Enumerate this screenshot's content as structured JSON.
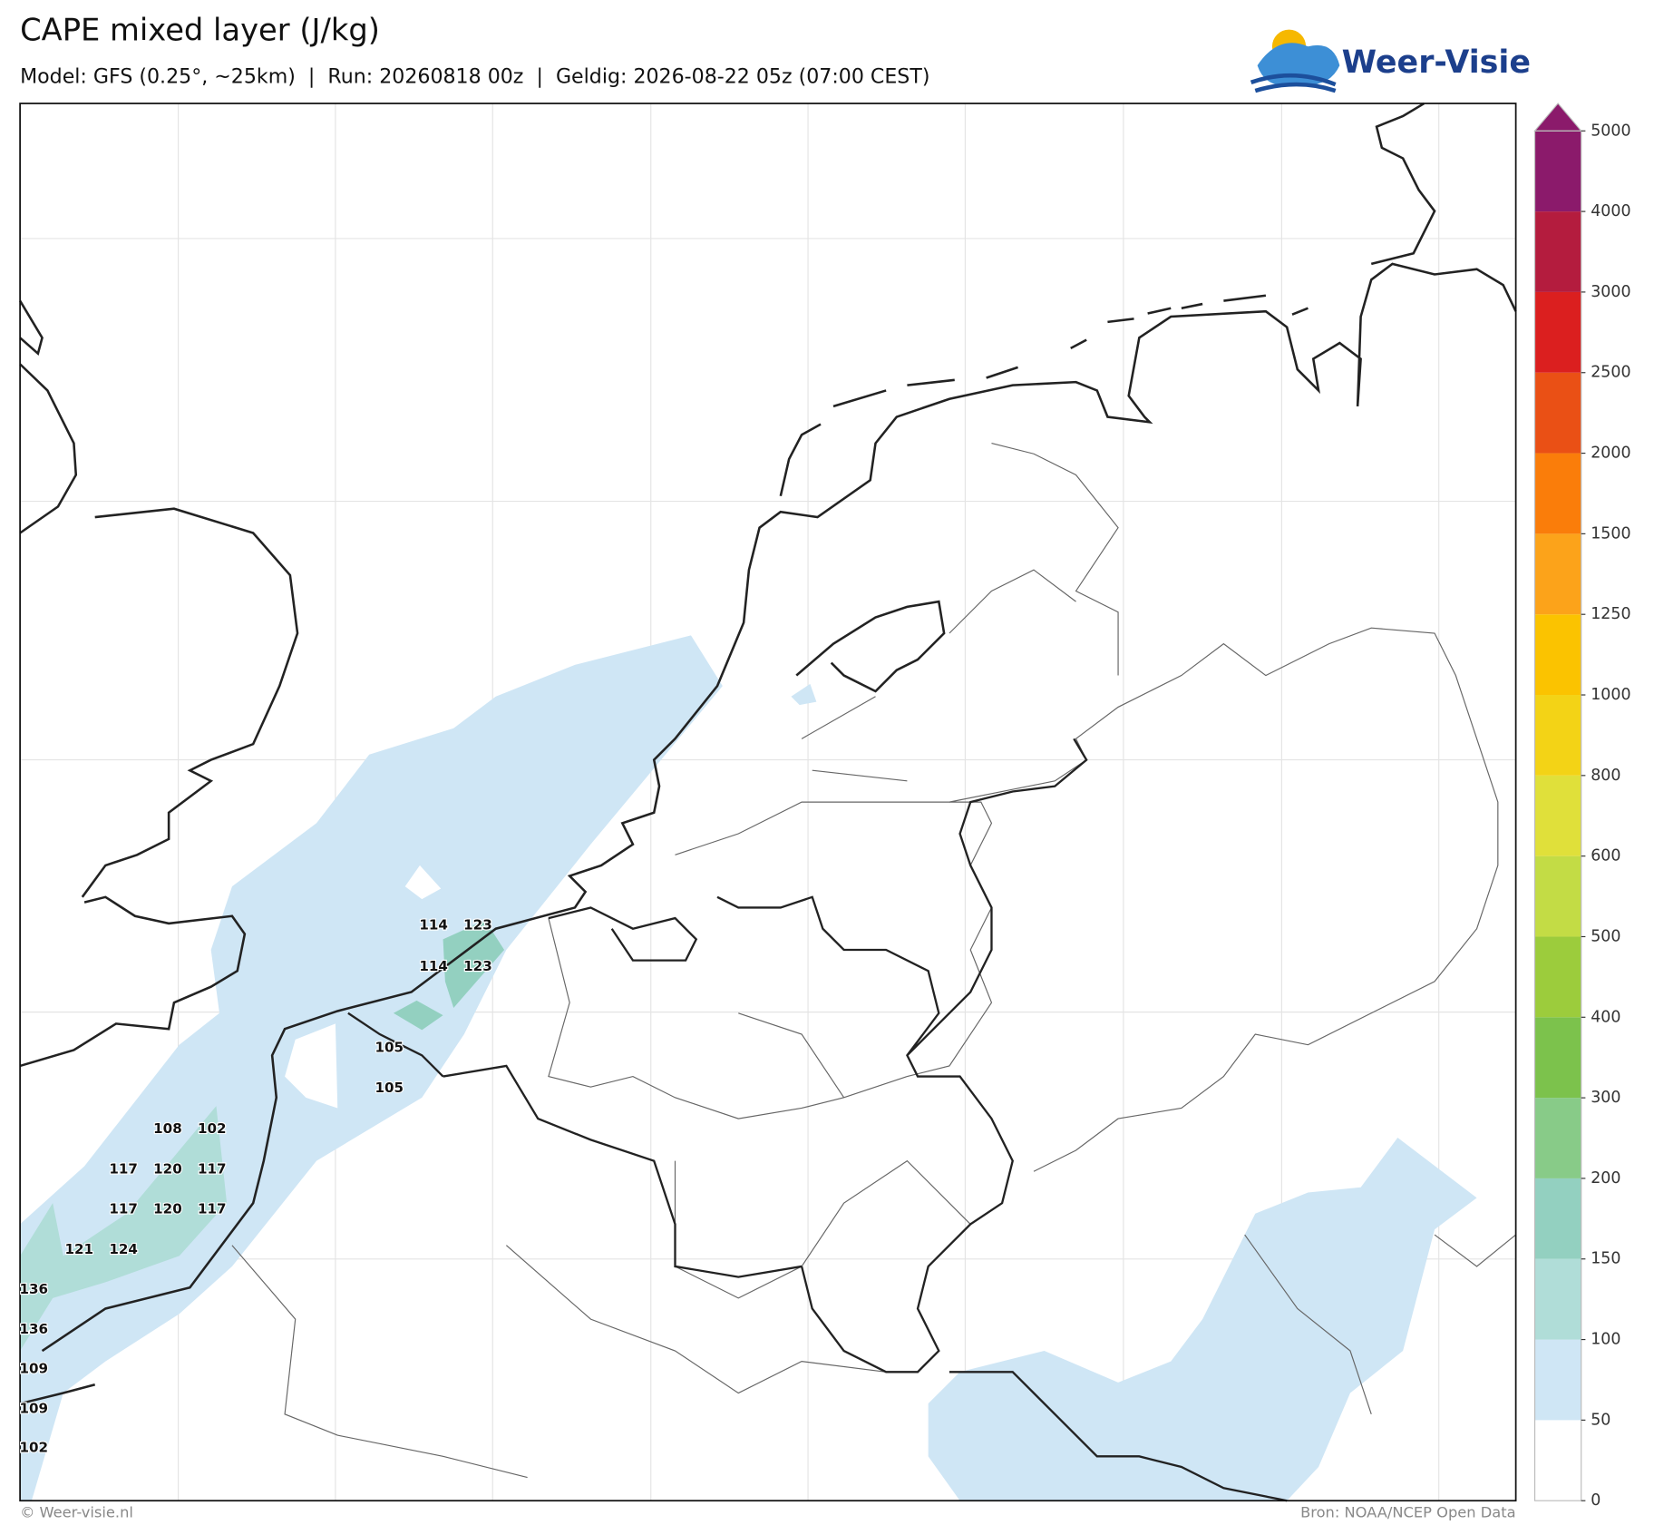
{
  "header": {
    "title": "CAPE mixed layer (J/kg)",
    "subtitle": "Model: GFS (0.25°, ~25km)  |  Run: 20260818 00z  |  Geldig: 2026-08-22 05z (07:00 CEST)",
    "logo": "Weer-Visie"
  },
  "colorbar": {
    "levels": [
      0,
      50,
      100,
      150,
      200,
      300,
      400,
      500,
      600,
      800,
      1000,
      1250,
      1500,
      2000,
      2500,
      3000,
      4000,
      5000
    ],
    "colors": [
      "#ffffff",
      "#cfe6f5",
      "#b0ddd8",
      "#93d0c0",
      "#88cb88",
      "#7cc24c",
      "#9ccc3c",
      "#c3dc45",
      "#e0e03a",
      "#f3d316",
      "#fbc300",
      "#fca31a",
      "#fa7d0a",
      "#ea5015",
      "#db1f1f",
      "#b41c3e",
      "#8b1a6b"
    ]
  },
  "map_labels": [
    114,
    123,
    114,
    123,
    105,
    105,
    108,
    102,
    117,
    120,
    117,
    117,
    120,
    117,
    121,
    124,
    136,
    136,
    109,
    109,
    102
  ],
  "footer": {
    "left": "© Weer-visie.nl",
    "right": "Bron: NOAA/NCEP Open Data"
  }
}
